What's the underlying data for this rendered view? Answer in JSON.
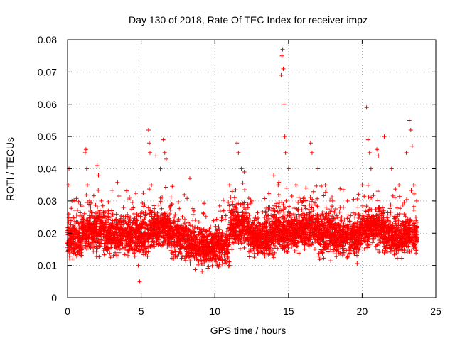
{
  "chart_data": {
    "type": "scatter",
    "title": "Day 130 of 2018, Rate Of TEC Index for receiver impz",
    "xlabel": "GPS time / hours",
    "ylabel": "ROTI / TECUs",
    "xlim": [
      0,
      25
    ],
    "ylim": [
      0,
      0.08
    ],
    "x_ticks": [
      0,
      5,
      10,
      15,
      20,
      25
    ],
    "y_ticks": [
      0,
      0.01,
      0.02,
      0.03,
      0.04,
      0.05,
      0.06,
      0.07,
      0.08
    ],
    "x_tick_labels": [
      "0",
      "5",
      "10",
      "15",
      "20",
      "25"
    ],
    "y_tick_labels": [
      "0",
      "0.01",
      "0.02",
      "0.03",
      "0.04",
      "0.05",
      "0.06",
      "0.07",
      "0.08"
    ],
    "grid": true,
    "marker": "+",
    "marker_color": "#ff0000",
    "series": [
      {
        "name": "ROTI",
        "x": [
          0.05,
          0.1,
          0.15,
          0.2,
          0.3,
          0.4,
          0.5,
          0.8,
          1.2,
          1.25,
          1.3,
          1.35,
          1.5,
          2.0,
          2.1,
          2.3,
          2.6,
          3.0,
          3.5,
          4.0,
          4.5,
          4.8,
          4.9,
          5.0,
          5.5,
          5.55,
          5.6,
          5.7,
          6.0,
          6.3,
          6.5,
          6.6,
          6.7,
          7.0,
          7.5,
          8.0,
          8.3,
          8.5,
          9.0,
          9.5,
          10.0,
          10.5,
          11.0,
          11.5,
          11.6,
          11.8,
          12.0,
          12.5,
          13.0,
          13.5,
          14.0,
          14.3,
          14.5,
          14.55,
          14.6,
          14.65,
          14.7,
          14.75,
          14.8,
          15.0,
          15.5,
          16.0,
          16.5,
          16.6,
          17.0,
          17.5,
          18.0,
          18.5,
          19.0,
          19.5,
          20.0,
          20.3,
          20.4,
          20.5,
          20.6,
          21.0,
          21.1,
          21.5,
          22.0,
          22.5,
          23.0,
          23.2,
          23.3,
          23.4,
          23.5,
          23.7
        ],
        "y": [
          0.035,
          0.04,
          0.012,
          0.02,
          0.03,
          0.025,
          0.03,
          0.02,
          0.045,
          0.046,
          0.04,
          0.035,
          0.03,
          0.041,
          0.038,
          0.03,
          0.025,
          0.027,
          0.022,
          0.02,
          0.026,
          0.01,
          0.005,
          0.015,
          0.052,
          0.048,
          0.045,
          0.035,
          0.044,
          0.04,
          0.049,
          0.045,
          0.043,
          0.02,
          0.02,
          0.022,
          0.037,
          0.015,
          0.015,
          0.018,
          0.02,
          0.025,
          0.035,
          0.048,
          0.045,
          0.04,
          0.039,
          0.03,
          0.02,
          0.025,
          0.038,
          0.035,
          0.069,
          0.075,
          0.077,
          0.071,
          0.06,
          0.05,
          0.045,
          0.04,
          0.035,
          0.03,
          0.048,
          0.045,
          0.04,
          0.035,
          0.03,
          0.028,
          0.03,
          0.025,
          0.035,
          0.059,
          0.049,
          0.045,
          0.04,
          0.046,
          0.044,
          0.05,
          0.04,
          0.035,
          0.045,
          0.055,
          0.052,
          0.047,
          0.035,
          0.03
        ]
      }
    ]
  }
}
